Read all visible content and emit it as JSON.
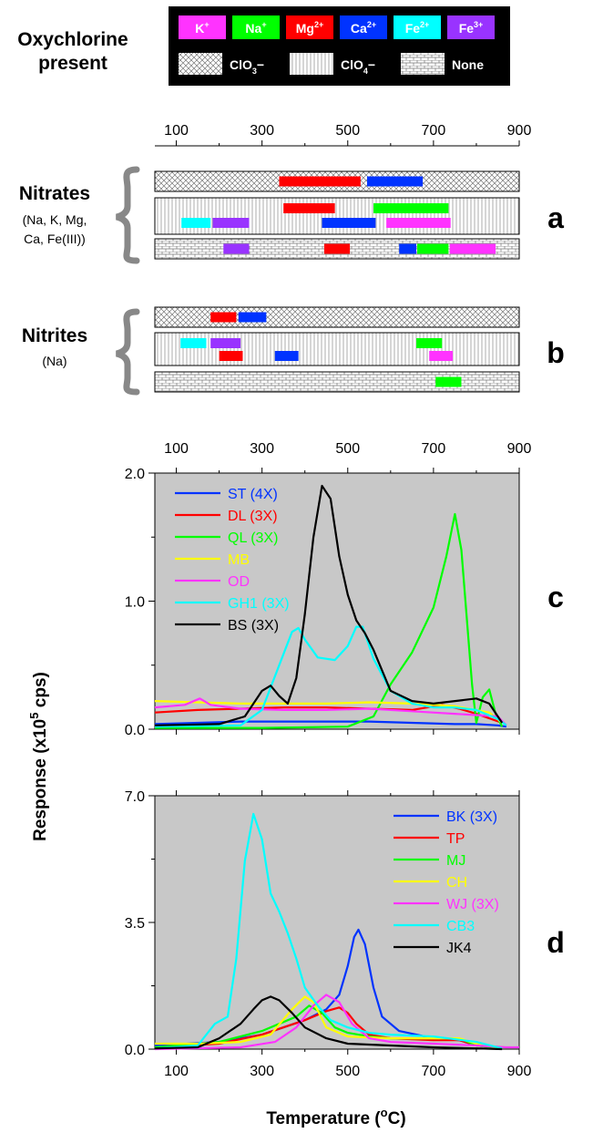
{
  "legend_box": {
    "heading_line1": "Oxychlorine",
    "heading_line2": "present",
    "cations": [
      {
        "label": "K",
        "sup": "+",
        "color": "#ff33ff"
      },
      {
        "label": "Na",
        "sup": "+",
        "color": "#00ff00"
      },
      {
        "label": "Mg",
        "sup": "2+",
        "color": "#ff0000"
      },
      {
        "label": "Ca",
        "sup": "2+",
        "color": "#0033ff"
      },
      {
        "label": "Fe",
        "sup": "2+",
        "color": "#00ffff"
      },
      {
        "label": "Fe",
        "sup": "3+",
        "color": "#9933ff"
      }
    ],
    "oxy": [
      {
        "label": "ClO",
        "sub": "3",
        "suffix": "−",
        "pattern": "crosshatch"
      },
      {
        "label": "ClO",
        "sub": "4",
        "suffix": "−",
        "pattern": "vertical"
      },
      {
        "label": "None",
        "sub": "",
        "suffix": "",
        "pattern": "brick"
      }
    ]
  },
  "colors": {
    "K": "#ff33ff",
    "Na": "#00ff00",
    "Mg": "#ff0000",
    "Ca": "#0033ff",
    "Fe2": "#00ffff",
    "Fe3": "#9933ff",
    "yellow": "#ffff00",
    "black": "#000000",
    "plot_bg": "#c8c8c8",
    "brace": "#888888"
  },
  "x_ticks": [
    "100",
    "300",
    "500",
    "700",
    "900"
  ],
  "panel_a": {
    "letter": "a",
    "title": "Nitrates",
    "subtitle_line1": "(Na, K, Mg,",
    "subtitle_line2": "Ca, Fe(III))",
    "rows": [
      {
        "pattern": "crosshatch",
        "bars": [
          {
            "start": 340,
            "end": 530,
            "ion": "Mg",
            "lane": 0
          },
          {
            "start": 545,
            "end": 675,
            "ion": "Ca",
            "lane": 0
          }
        ]
      },
      {
        "pattern": "vertical",
        "bars": [
          {
            "start": 350,
            "end": 470,
            "ion": "Mg",
            "lane": 0
          },
          {
            "start": 560,
            "end": 735,
            "ion": "Na",
            "lane": 0
          },
          {
            "start": 112,
            "end": 180,
            "ion": "Fe2",
            "lane": 1
          },
          {
            "start": 185,
            "end": 270,
            "ion": "Fe3",
            "lane": 1
          },
          {
            "start": 440,
            "end": 565,
            "ion": "Ca",
            "lane": 1
          },
          {
            "start": 590,
            "end": 740,
            "ion": "K",
            "lane": 1
          }
        ]
      },
      {
        "pattern": "brick",
        "bars": [
          {
            "start": 210,
            "end": 270,
            "ion": "Fe3",
            "lane": 0
          },
          {
            "start": 445,
            "end": 505,
            "ion": "Mg",
            "lane": 0
          },
          {
            "start": 620,
            "end": 660,
            "ion": "Ca",
            "lane": 0
          },
          {
            "start": 662,
            "end": 735,
            "ion": "Na",
            "lane": 0
          },
          {
            "start": 738,
            "end": 845,
            "ion": "K",
            "lane": 0
          }
        ]
      }
    ]
  },
  "panel_b": {
    "letter": "b",
    "title": "Nitrites",
    "subtitle_line1": "(Na)",
    "rows": [
      {
        "pattern": "crosshatch",
        "bars": [
          {
            "start": 180,
            "end": 240,
            "ion": "Mg",
            "lane": 0
          },
          {
            "start": 245,
            "end": 310,
            "ion": "Ca",
            "lane": 0
          }
        ]
      },
      {
        "pattern": "vertical",
        "bars": [
          {
            "start": 110,
            "end": 170,
            "ion": "Fe2",
            "lane": 0
          },
          {
            "start": 180,
            "end": 250,
            "ion": "Fe3",
            "lane": 0
          },
          {
            "start": 660,
            "end": 720,
            "ion": "Na",
            "lane": 0
          },
          {
            "start": 200,
            "end": 255,
            "ion": "Mg",
            "lane": 1
          },
          {
            "start": 330,
            "end": 385,
            "ion": "Ca",
            "lane": 1
          },
          {
            "start": 690,
            "end": 745,
            "ion": "K",
            "lane": 1
          }
        ]
      },
      {
        "pattern": "brick",
        "bars": [
          {
            "start": 705,
            "end": 765,
            "ion": "Na",
            "lane": 0
          }
        ]
      }
    ]
  },
  "axis_labels": {
    "ylabel_pre": "Response (x10",
    "ylabel_sup": "5",
    "ylabel_post": " cps)",
    "xlabel_pre": "Temperature (",
    "xlabel_sup": "o",
    "xlabel_post": "C)"
  },
  "chart_data": [
    {
      "type": "line",
      "panel": "c",
      "xlim": [
        50,
        900
      ],
      "ylim": [
        0,
        2.0
      ],
      "yticks": [
        "0.0",
        "1.0",
        "2.0"
      ],
      "xticks": [
        "100",
        "300",
        "500",
        "700",
        "900"
      ],
      "grid": false,
      "legend": "top-left",
      "series": [
        {
          "name": "ST (4X)",
          "color": "#0033ff",
          "x": [
            50,
            150,
            250,
            350,
            450,
            550,
            650,
            750,
            800,
            850,
            870
          ],
          "y": [
            0.04,
            0.05,
            0.06,
            0.06,
            0.06,
            0.06,
            0.05,
            0.04,
            0.04,
            0.03,
            0.02
          ]
        },
        {
          "name": "DL (3X)",
          "color": "#ff0000",
          "x": [
            50,
            150,
            250,
            350,
            450,
            550,
            650,
            720,
            760,
            800,
            860
          ],
          "y": [
            0.13,
            0.15,
            0.16,
            0.17,
            0.17,
            0.16,
            0.15,
            0.19,
            0.16,
            0.12,
            0.05
          ]
        },
        {
          "name": "QL (3X)",
          "color": "#00ff00",
          "x": [
            50,
            300,
            500,
            560,
            600,
            650,
            700,
            730,
            750,
            765,
            790,
            800,
            815,
            830,
            845,
            860
          ],
          "y": [
            0.01,
            0.01,
            0.02,
            0.1,
            0.35,
            0.6,
            0.95,
            1.35,
            1.68,
            1.4,
            0.35,
            0.05,
            0.25,
            0.31,
            0.12,
            0.02
          ]
        },
        {
          "name": "MB",
          "color": "#ffff00",
          "x": [
            50,
            150,
            250,
            350,
            450,
            550,
            650,
            750,
            830,
            860
          ],
          "y": [
            0.22,
            0.21,
            0.2,
            0.2,
            0.2,
            0.21,
            0.2,
            0.18,
            0.13,
            0.05
          ]
        },
        {
          "name": "OD",
          "color": "#ff33ff",
          "x": [
            50,
            120,
            155,
            180,
            250,
            350,
            450,
            550,
            650,
            750,
            850,
            870
          ],
          "y": [
            0.17,
            0.19,
            0.24,
            0.19,
            0.16,
            0.15,
            0.15,
            0.16,
            0.14,
            0.12,
            0.1,
            0.03
          ]
        },
        {
          "name": "GH1 (3X)",
          "color": "#00ffff",
          "x": [
            50,
            250,
            300,
            340,
            370,
            385,
            400,
            430,
            470,
            500,
            520,
            535,
            560,
            600,
            650,
            700,
            750,
            800,
            850,
            870
          ],
          "y": [
            0.02,
            0.03,
            0.15,
            0.5,
            0.76,
            0.79,
            0.7,
            0.56,
            0.54,
            0.65,
            0.8,
            0.8,
            0.55,
            0.3,
            0.2,
            0.17,
            0.17,
            0.15,
            0.08,
            0.03
          ]
        },
        {
          "name": "BS (3X)",
          "color": "#000000",
          "x": [
            50,
            200,
            260,
            300,
            320,
            340,
            360,
            380,
            400,
            420,
            440,
            460,
            480,
            500,
            520,
            540,
            560,
            600,
            650,
            700,
            750,
            800,
            830,
            860
          ],
          "y": [
            0.03,
            0.04,
            0.1,
            0.3,
            0.34,
            0.26,
            0.2,
            0.4,
            0.9,
            1.5,
            1.9,
            1.8,
            1.35,
            1.05,
            0.85,
            0.75,
            0.62,
            0.3,
            0.22,
            0.2,
            0.22,
            0.24,
            0.2,
            0.05
          ]
        }
      ]
    },
    {
      "type": "line",
      "panel": "d",
      "xlim": [
        50,
        900
      ],
      "ylim": [
        0,
        7.0
      ],
      "yticks": [
        "0.0",
        "3.5",
        "7.0"
      ],
      "xticks": [
        "100",
        "300",
        "500",
        "700",
        "900"
      ],
      "grid": false,
      "legend": "top-right",
      "series": [
        {
          "name": "BK (3X)",
          "color": "#0033ff",
          "x": [
            50,
            200,
            300,
            400,
            450,
            480,
            500,
            515,
            525,
            540,
            560,
            580,
            620,
            700,
            760,
            800,
            860
          ],
          "y": [
            0.1,
            0.2,
            0.4,
            0.8,
            1.1,
            1.5,
            2.3,
            3.1,
            3.3,
            2.9,
            1.7,
            0.9,
            0.5,
            0.3,
            0.25,
            0.1,
            0.02
          ]
        },
        {
          "name": "TP",
          "color": "#ff0000",
          "x": [
            50,
            200,
            300,
            400,
            450,
            480,
            500,
            520,
            550,
            600,
            700,
            760,
            800,
            860
          ],
          "y": [
            0.05,
            0.15,
            0.4,
            0.8,
            1.05,
            1.15,
            1.0,
            0.7,
            0.4,
            0.3,
            0.25,
            0.25,
            0.1,
            0.02
          ]
        },
        {
          "name": "MJ",
          "color": "#00ff00",
          "x": [
            50,
            200,
            300,
            380,
            410,
            440,
            470,
            500,
            550,
            600,
            700,
            760,
            800,
            860
          ],
          "y": [
            0.05,
            0.2,
            0.5,
            0.9,
            1.2,
            1.0,
            0.6,
            0.45,
            0.35,
            0.3,
            0.3,
            0.3,
            0.1,
            0.02
          ]
        },
        {
          "name": "CH",
          "color": "#ffff00",
          "x": [
            50,
            150,
            250,
            320,
            370,
            400,
            420,
            450,
            500,
            600,
            700,
            760,
            800,
            860
          ],
          "y": [
            0.15,
            0.15,
            0.2,
            0.4,
            1.1,
            1.45,
            1.3,
            0.6,
            0.35,
            0.3,
            0.3,
            0.3,
            0.15,
            0.02
          ]
        },
        {
          "name": "WJ (3X)",
          "color": "#ff33ff",
          "x": [
            50,
            250,
            330,
            380,
            420,
            450,
            480,
            510,
            550,
            600,
            700,
            800,
            870,
            900
          ],
          "y": [
            0.0,
            0.05,
            0.2,
            0.6,
            1.2,
            1.5,
            1.3,
            0.7,
            0.3,
            0.2,
            0.15,
            0.1,
            0.05,
            0.05
          ]
        },
        {
          "name": "CB3",
          "color": "#00ffff",
          "x": [
            50,
            150,
            190,
            220,
            240,
            260,
            280,
            300,
            320,
            340,
            360,
            380,
            400,
            430,
            460,
            500,
            550,
            600,
            700,
            800,
            860
          ],
          "y": [
            0.02,
            0.1,
            0.7,
            0.9,
            2.5,
            5.2,
            6.5,
            5.8,
            4.3,
            3.8,
            3.2,
            2.5,
            1.7,
            1.2,
            0.8,
            0.6,
            0.45,
            0.4,
            0.35,
            0.2,
            0.02
          ]
        },
        {
          "name": "JK4",
          "color": "#000000",
          "x": [
            50,
            150,
            200,
            250,
            280,
            300,
            320,
            340,
            370,
            400,
            450,
            500,
            600,
            700,
            800,
            860
          ],
          "y": [
            0.02,
            0.05,
            0.3,
            0.7,
            1.1,
            1.35,
            1.45,
            1.35,
            1.0,
            0.6,
            0.3,
            0.15,
            0.1,
            0.05,
            0.02,
            0.0
          ]
        }
      ]
    }
  ]
}
